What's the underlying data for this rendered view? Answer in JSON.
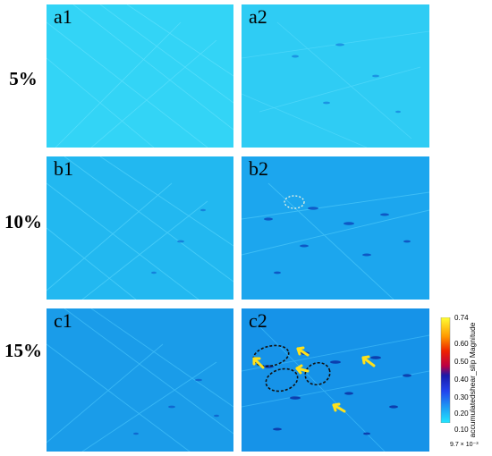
{
  "rows": [
    {
      "label": "5%",
      "left_panel": "a1",
      "right_panel": "a2",
      "left_color": "#33d4f6",
      "right_color": "#2fccf4"
    },
    {
      "label": "10%",
      "left_panel": "b1",
      "right_panel": "b2",
      "left_color": "#22b8f0",
      "right_color": "#1ca6ee"
    },
    {
      "label": "15%",
      "left_panel": "c1",
      "right_panel": "c2",
      "left_color": "#1a9ce9",
      "right_color": "#1693e8"
    }
  ],
  "colorbar": {
    "title": "accumulatedshear_slip Magnitude",
    "ticks": [
      "0.74",
      "0.60",
      "0.50",
      "0.40",
      "0.30",
      "0.20",
      "0.10",
      "9.7 × 10⁻³"
    ],
    "colors": [
      "#ffff33",
      "#ff9900",
      "#ee2200",
      "#bb0044",
      "#1a1aaa",
      "#2244ee",
      "#1ea0f4",
      "#22e6ff"
    ]
  },
  "annotations": {
    "dashed_ellipse_colors": [
      "#fffbe0",
      "#111111"
    ],
    "arrow_color": "#ffe11a",
    "arrow_count": 5
  }
}
